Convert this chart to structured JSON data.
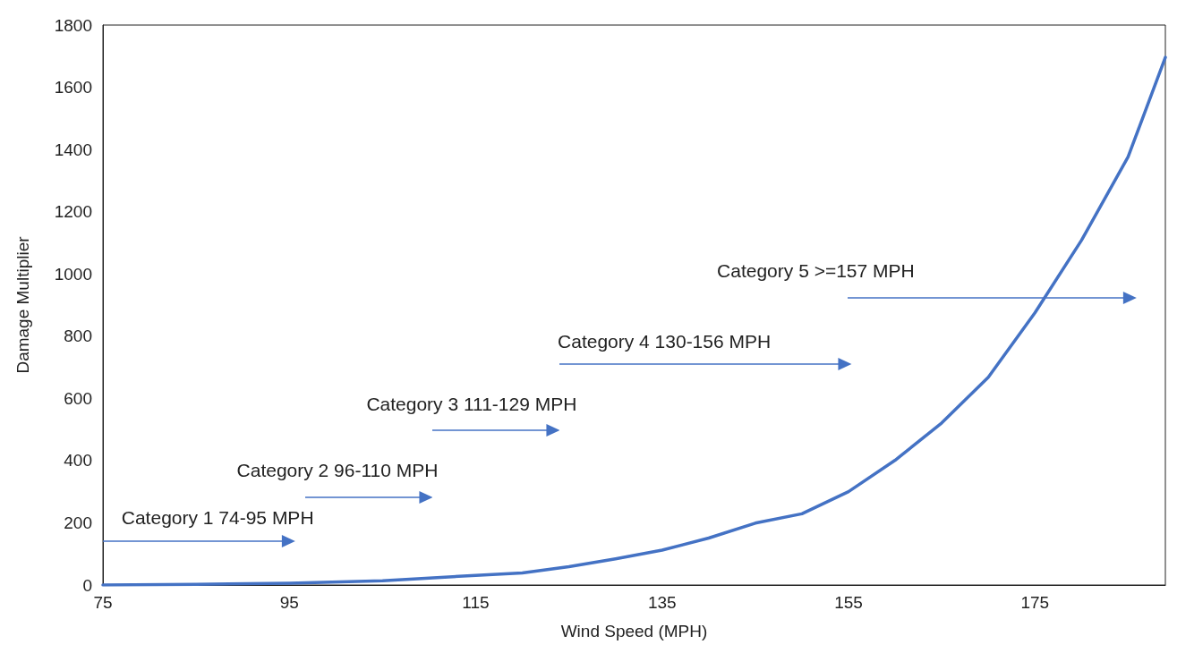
{
  "chart_data": {
    "type": "line",
    "xlabel": "Wind Speed (MPH)",
    "ylabel": "Damage Multiplier",
    "xlim": [
      75,
      189
    ],
    "ylim": [
      0,
      1800
    ],
    "xticks": [
      75,
      95,
      115,
      135,
      155,
      175
    ],
    "yticks": [
      0,
      200,
      400,
      600,
      800,
      1000,
      1200,
      1400,
      1600,
      1800
    ],
    "grid": false,
    "marker": "none",
    "line_style": "solid",
    "series": [
      {
        "color": "#4472c4",
        "x": [
          75,
          85,
          95,
          105,
          115,
          120,
          125,
          130,
          135,
          140,
          145,
          150,
          155,
          160,
          165,
          170,
          175,
          180,
          185,
          189
        ],
        "values": [
          0,
          2,
          6,
          14,
          31,
          39,
          59,
          84,
          112,
          151,
          199,
          229,
          300,
          401,
          521,
          668,
          875,
          1108,
          1376,
          1696
        ]
      }
    ],
    "annotations": [
      "Category 1 74-95 MPH",
      "Category 2 96-110 MPH",
      "Category 3 111-129 MPH",
      "Category 4 130-156 MPH",
      "Category 5 >=157 MPH"
    ]
  }
}
